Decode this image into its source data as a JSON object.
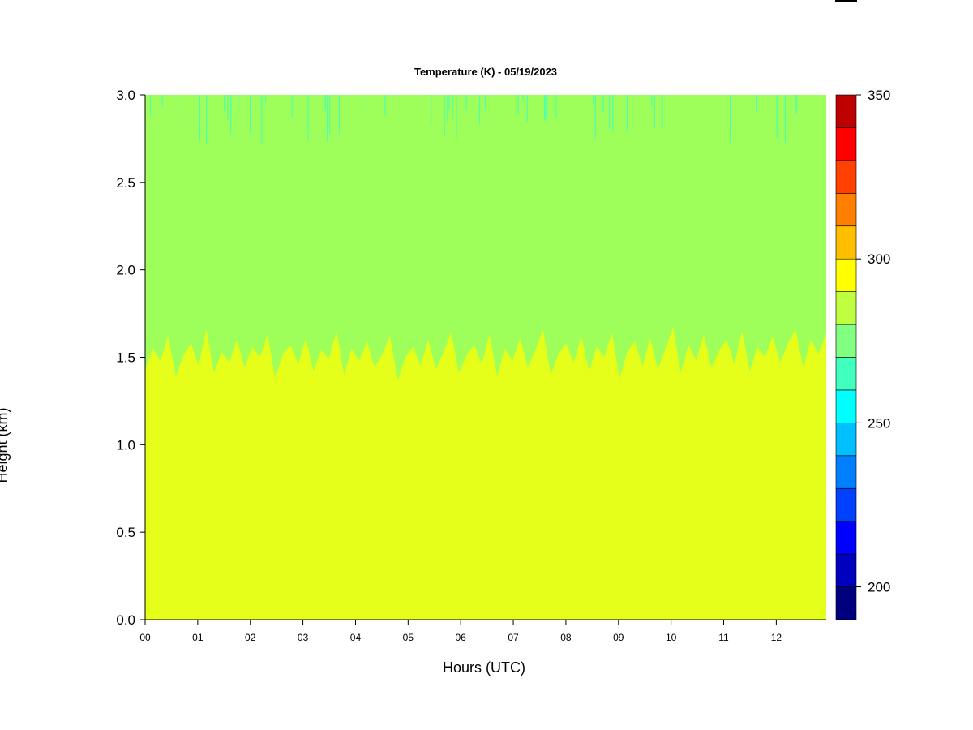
{
  "chart_data": {
    "type": "heatmap",
    "title": "Temperature (K) - 05/19/2023",
    "xlabel": "Hours (UTC)",
    "ylabel": "Height (km)",
    "x_tick_labels": [
      "00",
      "01",
      "02",
      "03",
      "04",
      "05",
      "06",
      "07",
      "08",
      "09",
      "10",
      "11",
      "12"
    ],
    "x_range_hours": [
      0,
      12.95
    ],
    "y_ticks": [
      0.0,
      0.5,
      1.0,
      1.5,
      2.0,
      2.5,
      3.0
    ],
    "y_tick_labels": [
      "0.0",
      "0.5",
      "1.0",
      "1.5",
      "2.0",
      "2.5",
      "3.0"
    ],
    "ylim": [
      0.0,
      3.0
    ],
    "colorbar": {
      "levels": [
        190,
        200,
        210,
        220,
        230,
        240,
        250,
        260,
        270,
        280,
        290,
        300,
        310,
        320,
        330,
        340,
        350
      ],
      "colors": [
        "#00007f",
        "#0000bf",
        "#0000ff",
        "#0040ff",
        "#0080ff",
        "#00bfff",
        "#00ffff",
        "#40ffbf",
        "#80ff80",
        "#bfff40",
        "#ffff00",
        "#ffbf00",
        "#ff8000",
        "#ff4000",
        "#ff0000",
        "#bf0000",
        "#7f0000"
      ],
      "tick_values": [
        200,
        250,
        300,
        350
      ],
      "tick_labels": [
        "200",
        "250",
        "300",
        "350"
      ]
    },
    "fields": {
      "lower_layer": {
        "temp_band_K": [
          280,
          290
        ],
        "color": "#e6ff1a",
        "height_km": [
          0.0,
          1.5
        ]
      },
      "upper_layer": {
        "temp_band_K": [
          270,
          280
        ],
        "color": "#9eff5a",
        "height_km": [
          1.5,
          3.0
        ]
      },
      "fringe_color": "#4dffb0"
    },
    "boundary_height_km": [
      1.43,
      1.55,
      1.48,
      1.62,
      1.39,
      1.51,
      1.58,
      1.45,
      1.66,
      1.41,
      1.53,
      1.47,
      1.6,
      1.44,
      1.56,
      1.5,
      1.63,
      1.38,
      1.52,
      1.57,
      1.46,
      1.61,
      1.42,
      1.54,
      1.49,
      1.65,
      1.4,
      1.55,
      1.48,
      1.59,
      1.44,
      1.52,
      1.62,
      1.37,
      1.5,
      1.56,
      1.45,
      1.6,
      1.43,
      1.53,
      1.64,
      1.41,
      1.51,
      1.57,
      1.46,
      1.63,
      1.39,
      1.55,
      1.48,
      1.61,
      1.44,
      1.54,
      1.66,
      1.4,
      1.52,
      1.58,
      1.47,
      1.62,
      1.42,
      1.56,
      1.5,
      1.64,
      1.38,
      1.53,
      1.59,
      1.45,
      1.61,
      1.43,
      1.55,
      1.67,
      1.41,
      1.57,
      1.48,
      1.63,
      1.44,
      1.54,
      1.6,
      1.46,
      1.65,
      1.42,
      1.56,
      1.5,
      1.62,
      1.47,
      1.58,
      1.66,
      1.44,
      1.6,
      1.52,
      1.64
    ]
  }
}
